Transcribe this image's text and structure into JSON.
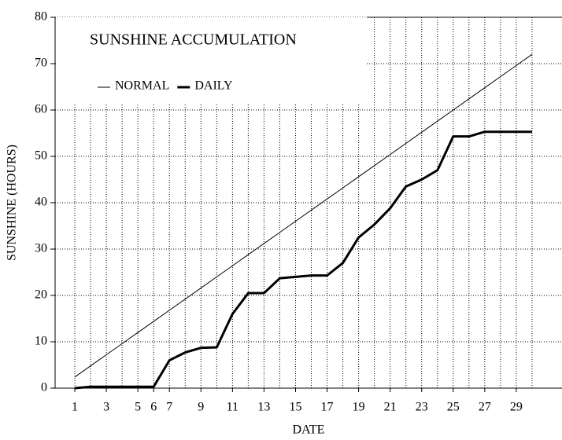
{
  "chart_data": {
    "type": "line",
    "title": "SUNSHINE ACCUMULATION",
    "x_label": "DATE",
    "y_label": "SUNSHINE (HOURS)",
    "x": [
      1,
      2,
      3,
      4,
      5,
      6,
      7,
      8,
      9,
      10,
      11,
      12,
      13,
      14,
      15,
      16,
      17,
      18,
      19,
      20,
      21,
      22,
      23,
      24,
      25,
      26,
      27,
      28,
      29,
      30
    ],
    "series": [
      {
        "name": "NORMAL",
        "color": "#000000",
        "width": 1,
        "values": [
          2.4,
          4.8,
          7.2,
          9.6,
          12,
          14.4,
          16.8,
          19.2,
          21.6,
          24,
          26.4,
          28.8,
          31.2,
          33.6,
          36,
          38.4,
          40.8,
          43.2,
          45.6,
          48,
          50.4,
          52.8,
          55.2,
          57.6,
          60,
          62.4,
          64.8,
          67.2,
          69.6,
          72
        ]
      },
      {
        "name": "DAILY",
        "color": "#000000",
        "width": 3,
        "values": [
          0,
          0.3,
          0.3,
          0.3,
          0.3,
          0.3,
          6,
          7.7,
          8.7,
          8.8,
          16,
          20.5,
          20.5,
          23.7,
          24,
          24.3,
          24.3,
          27,
          32.5,
          35.3,
          38.8,
          43.5,
          45,
          47,
          54.3,
          54.3,
          55.3,
          55.3,
          55.3,
          55.3
        ]
      }
    ],
    "xlim": [
      -0.25,
      31.9
    ],
    "xticks": [
      1,
      3,
      5,
      6,
      7,
      9,
      11,
      13,
      15,
      17,
      19,
      21,
      23,
      25,
      27,
      29
    ],
    "ylim": [
      0,
      80
    ],
    "yticks": [
      0,
      10,
      20,
      30,
      40,
      50,
      60,
      70,
      80
    ],
    "grid": true
  }
}
